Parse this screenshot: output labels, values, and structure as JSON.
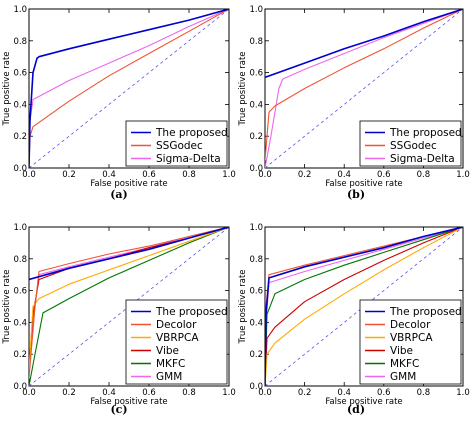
{
  "chart_data": [
    {
      "panel": "(a)",
      "type": "line",
      "xlabel": "False positive rate",
      "ylabel": "True positive rate",
      "xlim": [
        0,
        1
      ],
      "ylim": [
        0,
        1
      ],
      "xticks": [
        "0.0",
        "0.2",
        "0.4",
        "0.6",
        "0.8",
        "1.0"
      ],
      "yticks": [
        "0.0",
        "0.2",
        "0.4",
        "0.6",
        "0.8",
        "1.0"
      ],
      "legend": "bottom-right",
      "diagonal": true,
      "series": [
        {
          "name": "The proposed",
          "color": "#0000cc",
          "x": [
            0,
            0.005,
            0.02,
            0.04,
            0.05,
            0.2,
            0.4,
            0.6,
            0.8,
            1.0
          ],
          "y": [
            0,
            0.3,
            0.6,
            0.69,
            0.7,
            0.75,
            0.81,
            0.87,
            0.93,
            1.0
          ]
        },
        {
          "name": "SSGodec",
          "color": "#ee5533",
          "x": [
            0,
            0.005,
            0.02,
            0.2,
            0.4,
            0.6,
            0.8,
            1.0
          ],
          "y": [
            0,
            0.2,
            0.26,
            0.42,
            0.58,
            0.72,
            0.86,
            1.0
          ]
        },
        {
          "name": "Sigma-Delta",
          "color": "#ee66ee",
          "x": [
            0,
            0.005,
            0.02,
            0.2,
            0.4,
            0.6,
            0.8,
            1.0
          ],
          "y": [
            0,
            0.3,
            0.43,
            0.55,
            0.66,
            0.77,
            0.89,
            1.0
          ]
        }
      ]
    },
    {
      "panel": "(b)",
      "type": "line",
      "xlabel": "False positive rate",
      "ylabel": "True positive rate",
      "xlim": [
        0,
        1
      ],
      "ylim": [
        0,
        1
      ],
      "xticks": [
        "0.0",
        "0.2",
        "0.4",
        "0.6",
        "0.8",
        "1.0"
      ],
      "yticks": [
        "0.0",
        "0.2",
        "0.4",
        "0.6",
        "0.8",
        "1.0"
      ],
      "legend": "bottom-right",
      "diagonal": true,
      "series": [
        {
          "name": "The proposed",
          "color": "#0000cc",
          "x": [
            0,
            0.2,
            0.4,
            0.6,
            0.8,
            1.0
          ],
          "y": [
            0.57,
            0.66,
            0.75,
            0.83,
            0.92,
            1.0
          ]
        },
        {
          "name": "SSGodec",
          "color": "#ee5533",
          "x": [
            0,
            0.02,
            0.05,
            0.2,
            0.4,
            0.6,
            0.8,
            1.0
          ],
          "y": [
            0.05,
            0.35,
            0.39,
            0.5,
            0.63,
            0.75,
            0.88,
            1.0
          ]
        },
        {
          "name": "Sigma-Delta",
          "color": "#ee66ee",
          "x": [
            0,
            0.03,
            0.07,
            0.09,
            0.2,
            0.4,
            0.6,
            0.8,
            1.0
          ],
          "y": [
            0,
            0.2,
            0.5,
            0.56,
            0.62,
            0.72,
            0.82,
            0.91,
            1.0
          ]
        }
      ]
    },
    {
      "panel": "(c)",
      "type": "line",
      "xlabel": "False positive rate",
      "ylabel": "True positive rate",
      "xlim": [
        0,
        1
      ],
      "ylim": [
        0,
        1
      ],
      "xticks": [
        "0.0",
        "0.2",
        "0.4",
        "0.6",
        "0.8",
        "1.0"
      ],
      "yticks": [
        "0.0",
        "0.2",
        "0.4",
        "0.6",
        "0.8",
        "1.0"
      ],
      "legend": "bottom-right",
      "diagonal": true,
      "series": [
        {
          "name": "The proposed",
          "color": "#0000cc",
          "x": [
            0,
            0.2,
            0.4,
            0.6,
            0.8,
            1.0
          ],
          "y": [
            0.67,
            0.74,
            0.8,
            0.86,
            0.93,
            1.0
          ]
        },
        {
          "name": "Decolor",
          "color": "#ee5533",
          "x": [
            0,
            0.03,
            0.05,
            0.2,
            0.4,
            0.6,
            0.8,
            1.0
          ],
          "y": [
            0.05,
            0.5,
            0.72,
            0.77,
            0.83,
            0.88,
            0.94,
            1.0
          ]
        },
        {
          "name": "VBRPCA",
          "color": "#ffaa00",
          "x": [
            0,
            0.02,
            0.05,
            0.2,
            0.4,
            0.6,
            0.8,
            1.0
          ],
          "y": [
            0.1,
            0.5,
            0.55,
            0.64,
            0.73,
            0.82,
            0.91,
            1.0
          ]
        },
        {
          "name": "Vibe",
          "color": "#cc0000",
          "x": [
            0,
            0.02,
            0.05,
            0.2,
            0.4,
            0.6,
            0.8,
            1.0
          ],
          "y": [
            0.1,
            0.45,
            0.67,
            0.74,
            0.8,
            0.87,
            0.93,
            1.0
          ]
        },
        {
          "name": "MKFC",
          "color": "#007700",
          "x": [
            0,
            0.03,
            0.07,
            0.2,
            0.4,
            0.6,
            0.8,
            1.0
          ],
          "y": [
            0,
            0.2,
            0.46,
            0.55,
            0.68,
            0.79,
            0.9,
            1.0
          ]
        },
        {
          "name": "GMM",
          "color": "#ee66ee",
          "x": [
            0,
            0.03,
            0.05,
            0.2,
            0.4,
            0.6,
            0.8,
            1.0
          ],
          "y": [
            0.1,
            0.5,
            0.7,
            0.75,
            0.81,
            0.87,
            0.94,
            1.0
          ]
        }
      ]
    },
    {
      "panel": "(d)",
      "type": "line",
      "xlabel": "False positive rate",
      "ylabel": "True positive rate",
      "xlim": [
        0,
        1
      ],
      "ylim": [
        0,
        1
      ],
      "xticks": [
        "0.0",
        "0.2",
        "0.4",
        "0.6",
        "0.8",
        "1.0"
      ],
      "yticks": [
        "0.0",
        "0.2",
        "0.4",
        "0.6",
        "0.8",
        "1.0"
      ],
      "legend": "bottom-right",
      "diagonal": true,
      "series": [
        {
          "name": "The proposed",
          "color": "#0000cc",
          "x": [
            0,
            0.005,
            0.02,
            0.2,
            0.4,
            0.6,
            0.8,
            1.0
          ],
          "y": [
            0,
            0.45,
            0.68,
            0.75,
            0.81,
            0.87,
            0.94,
            1.0
          ]
        },
        {
          "name": "Decolor",
          "color": "#ee5533",
          "x": [
            0,
            0.005,
            0.02,
            0.2,
            0.4,
            0.6,
            0.8,
            1.0
          ],
          "y": [
            0,
            0.5,
            0.7,
            0.76,
            0.82,
            0.88,
            0.94,
            1.0
          ]
        },
        {
          "name": "VBRPCA",
          "color": "#ffaa00",
          "x": [
            0,
            0.01,
            0.05,
            0.2,
            0.4,
            0.6,
            0.8,
            1.0
          ],
          "y": [
            0,
            0.2,
            0.27,
            0.42,
            0.58,
            0.73,
            0.87,
            1.0
          ]
        },
        {
          "name": "Vibe",
          "color": "#cc0000",
          "x": [
            0,
            0.01,
            0.05,
            0.2,
            0.4,
            0.6,
            0.8,
            1.0
          ],
          "y": [
            0,
            0.3,
            0.37,
            0.53,
            0.67,
            0.79,
            0.9,
            1.0
          ]
        },
        {
          "name": "MKFC",
          "color": "#007700",
          "x": [
            0,
            0.01,
            0.05,
            0.2,
            0.4,
            0.6,
            0.8,
            1.0
          ],
          "y": [
            0,
            0.45,
            0.58,
            0.67,
            0.76,
            0.84,
            0.92,
            1.0
          ]
        },
        {
          "name": "GMM",
          "color": "#ee66ee",
          "x": [
            0,
            0.005,
            0.02,
            0.2,
            0.4,
            0.6,
            0.8,
            1.0
          ],
          "y": [
            0,
            0.4,
            0.65,
            0.72,
            0.79,
            0.86,
            0.93,
            1.0
          ]
        }
      ]
    }
  ]
}
